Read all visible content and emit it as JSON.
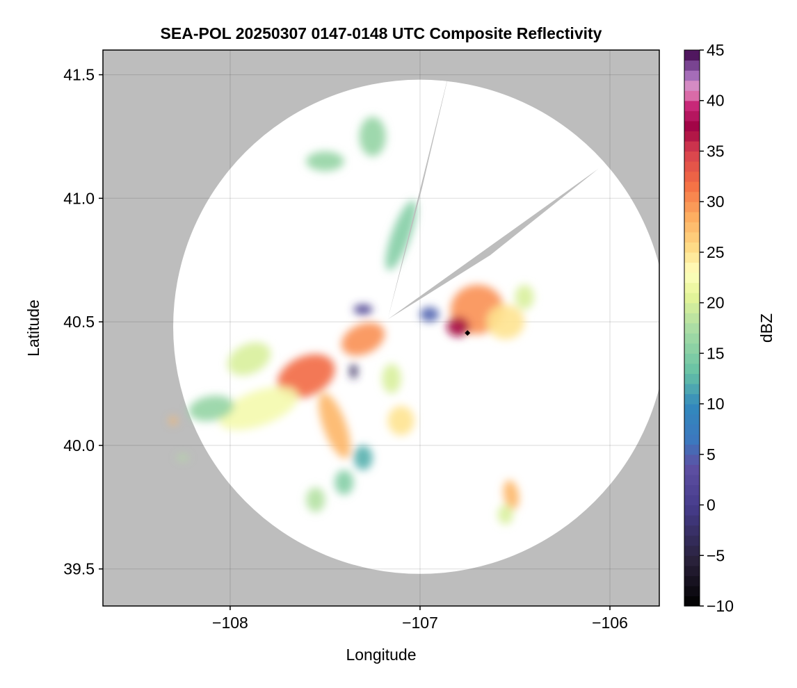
{
  "chart_data": {
    "type": "heatmap",
    "title": "SEA-POL 20250307 0147-0148 UTC Composite Reflectivity",
    "xlabel": "Longitude",
    "ylabel": "Latitude",
    "xlim": [
      -108.67,
      -105.74
    ],
    "ylim": [
      39.35,
      41.6
    ],
    "xticks": [
      -108,
      -107,
      -106
    ],
    "xtick_labels": [
      "−108",
      "−107",
      "−106"
    ],
    "yticks": [
      39.5,
      40.0,
      40.5,
      41.0,
      41.5
    ],
    "ytick_labels": [
      "39.5",
      "40.0",
      "40.5",
      "41.0",
      "41.5"
    ],
    "grid": true,
    "no_coverage_color": "#bdbdbd",
    "radar": {
      "center": [
        -107.0,
        40.48
      ],
      "range_deg_lon": 1.3,
      "range_deg_lat": 1.0,
      "blocked_sectors": [
        {
          "from": [
            -107.17,
            40.51
          ],
          "to_a": [
            -106.84,
            41.53
          ],
          "to_b": [
            -106.99,
            41.04
          ]
        },
        {
          "from": [
            -107.17,
            40.51
          ],
          "to_a": [
            -106.06,
            41.12
          ],
          "to_b": [
            -106.63,
            40.77
          ]
        }
      ]
    },
    "colorbar": {
      "label": "dBZ",
      "min": -10,
      "max": 45,
      "ticks": [
        -10,
        -5,
        0,
        5,
        10,
        15,
        20,
        25,
        30,
        35,
        40,
        45
      ],
      "tick_labels": [
        "−10",
        "−5",
        "0",
        "5",
        "10",
        "15",
        "20",
        "25",
        "30",
        "35",
        "40",
        "45"
      ],
      "colormap": "Spectral_r"
    },
    "reflectivity_cells": [
      {
        "lon": -107.6,
        "lat": 40.28,
        "rx": 0.16,
        "ry": 0.08,
        "rot": -25,
        "dbz": 32
      },
      {
        "lon": -107.3,
        "lat": 40.43,
        "rx": 0.12,
        "ry": 0.06,
        "rot": -25,
        "dbz": 30
      },
      {
        "lon": -107.85,
        "lat": 40.15,
        "rx": 0.22,
        "ry": 0.07,
        "rot": -20,
        "dbz": 22
      },
      {
        "lon": -107.45,
        "lat": 40.08,
        "rx": 0.06,
        "ry": 0.14,
        "rot": -20,
        "dbz": 28
      },
      {
        "lon": -108.1,
        "lat": 40.15,
        "rx": 0.12,
        "ry": 0.05,
        "rot": -10,
        "dbz": 16
      },
      {
        "lon": -106.7,
        "lat": 40.55,
        "rx": 0.14,
        "ry": 0.1,
        "rot": -10,
        "dbz": 30
      },
      {
        "lon": -106.55,
        "lat": 40.5,
        "rx": 0.1,
        "ry": 0.07,
        "rot": 0,
        "dbz": 25
      },
      {
        "lon": -106.8,
        "lat": 40.48,
        "rx": 0.06,
        "ry": 0.04,
        "rot": 0,
        "dbz": 37
      },
      {
        "lon": -106.52,
        "lat": 39.8,
        "rx": 0.04,
        "ry": 0.06,
        "rot": -10,
        "dbz": 28
      },
      {
        "lon": -106.55,
        "lat": 39.72,
        "rx": 0.04,
        "ry": 0.04,
        "rot": 0,
        "dbz": 20
      },
      {
        "lon": -107.1,
        "lat": 40.1,
        "rx": 0.07,
        "ry": 0.06,
        "rot": 0,
        "dbz": 25
      },
      {
        "lon": -107.15,
        "lat": 40.27,
        "rx": 0.05,
        "ry": 0.06,
        "rot": 0,
        "dbz": 20
      },
      {
        "lon": -107.1,
        "lat": 40.85,
        "rx": 0.05,
        "ry": 0.15,
        "rot": 20,
        "dbz": 15
      },
      {
        "lon": -107.25,
        "lat": 41.25,
        "rx": 0.07,
        "ry": 0.08,
        "rot": 0,
        "dbz": 16
      },
      {
        "lon": -107.5,
        "lat": 41.15,
        "rx": 0.1,
        "ry": 0.04,
        "rot": 0,
        "dbz": 16
      },
      {
        "lon": -107.9,
        "lat": 40.35,
        "rx": 0.12,
        "ry": 0.06,
        "rot": -25,
        "dbz": 20
      },
      {
        "lon": -107.4,
        "lat": 39.85,
        "rx": 0.05,
        "ry": 0.05,
        "rot": 0,
        "dbz": 15
      },
      {
        "lon": -107.55,
        "lat": 39.78,
        "rx": 0.05,
        "ry": 0.05,
        "rot": 0,
        "dbz": 18
      },
      {
        "lon": -107.3,
        "lat": 40.55,
        "rx": 0.05,
        "ry": 0.02,
        "rot": 0,
        "dbz": 0
      },
      {
        "lon": -106.95,
        "lat": 40.53,
        "rx": 0.05,
        "ry": 0.03,
        "rot": 0,
        "dbz": 5
      },
      {
        "lon": -107.35,
        "lat": 40.3,
        "rx": 0.02,
        "ry": 0.03,
        "rot": 0,
        "dbz": -3
      },
      {
        "lon": -108.3,
        "lat": 40.1,
        "rx": 0.02,
        "ry": 0.015,
        "rot": 0,
        "dbz": 28
      },
      {
        "lon": -108.25,
        "lat": 39.95,
        "rx": 0.03,
        "ry": 0.01,
        "rot": 0,
        "dbz": 18
      },
      {
        "lon": -107.3,
        "lat": 39.95,
        "rx": 0.05,
        "ry": 0.05,
        "rot": 0,
        "dbz": 12
      },
      {
        "lon": -106.45,
        "lat": 40.6,
        "rx": 0.05,
        "ry": 0.05,
        "rot": 0,
        "dbz": 20
      }
    ],
    "marker": {
      "lon": -106.75,
      "lat": 40.455,
      "symbol": "diamond",
      "color": "#000000"
    }
  }
}
